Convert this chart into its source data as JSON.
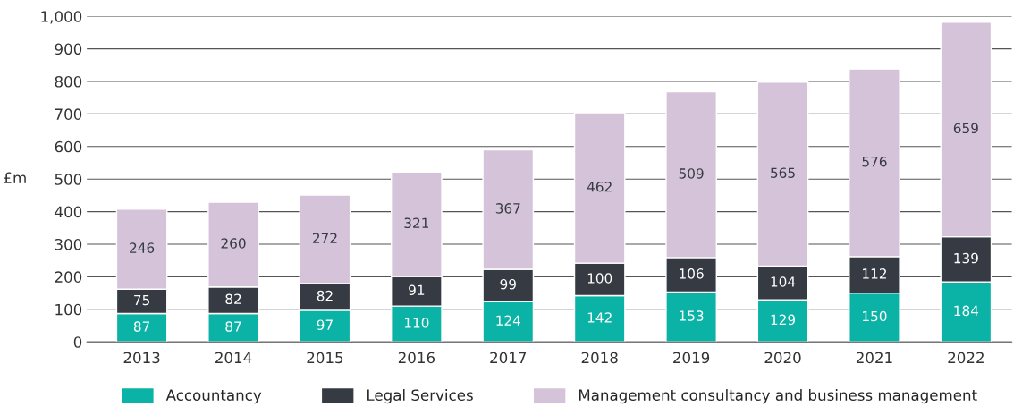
{
  "chart_data": {
    "type": "bar",
    "stacked": true,
    "ylabel": "£m",
    "categories": [
      "2013",
      "2014",
      "2015",
      "2016",
      "2017",
      "2018",
      "2019",
      "2020",
      "2021",
      "2022"
    ],
    "series": [
      {
        "name": "Accountancy",
        "color": "#0bb3a6",
        "values": [
          87,
          87,
          97,
          110,
          124,
          142,
          153,
          129,
          150,
          184
        ]
      },
      {
        "name": "Legal Services",
        "color": "#363b43",
        "values": [
          75,
          82,
          82,
          91,
          99,
          100,
          106,
          104,
          112,
          139
        ]
      },
      {
        "name": "Management consultancy and business management",
        "color": "#d4c3d9",
        "values": [
          246,
          260,
          272,
          321,
          367,
          462,
          509,
          565,
          576,
          659
        ]
      }
    ],
    "ylim": [
      0,
      1000
    ],
    "yticks": [
      0,
      100,
      200,
      300,
      400,
      500,
      600,
      700,
      800,
      900,
      {
        "value": 1000,
        "label": "1,000"
      }
    ],
    "grid": "y",
    "legend": "bottom",
    "data_labels": true
  }
}
